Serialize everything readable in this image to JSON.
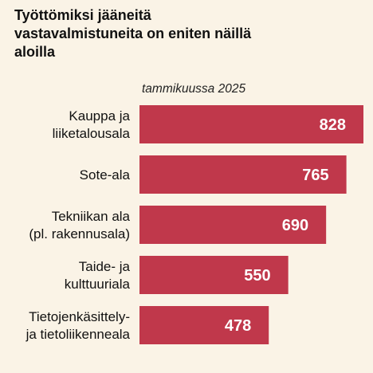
{
  "title": "Työttömiksi jääneitä vastavalmistuneita on eniten näillä aloilla",
  "subtitle": "tammikuussa 2025",
  "colors": {
    "background": "#faf3e6",
    "bar": "#c0384b",
    "value_text": "#ffffff"
  },
  "chart_data": {
    "type": "bar",
    "orientation": "horizontal",
    "title": "Työttömiksi jääneitä vastavalmistuneita on eniten näillä aloilla",
    "subtitle": "tammikuussa 2025",
    "categories": [
      [
        "Kauppa ja",
        "liiketalousala"
      ],
      [
        "Sote-ala"
      ],
      [
        "Tekniikan ala",
        "(pl. rakennusala)"
      ],
      [
        "Taide- ja",
        "kulttuuriala"
      ],
      [
        "Tietojenkäsittely-",
        "ja tietoliikenneala"
      ]
    ],
    "values": [
      828,
      765,
      690,
      550,
      478
    ],
    "xlim": [
      0,
      828
    ],
    "grid": false,
    "legend": "none"
  }
}
